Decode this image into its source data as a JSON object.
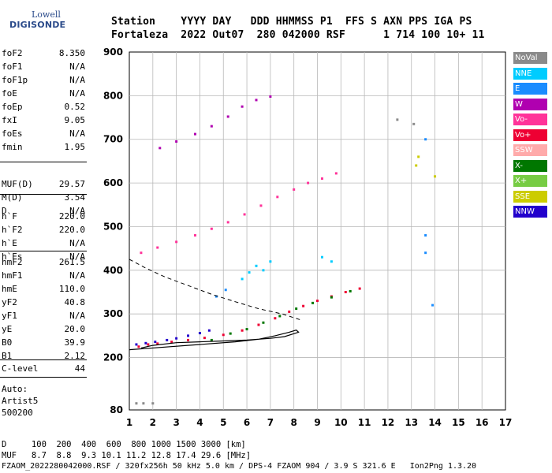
{
  "logo": {
    "top": "Lowell",
    "main": "DIGISONDE"
  },
  "header": {
    "line1": "Station    YYYY DAY   DDD HHMMSS P1  FFS S AXN PPS IGA PS",
    "line2": "Fortaleza  2022 Out07  280 042000 RSF      1 714 100 10+ 11"
  },
  "params": {
    "group1": [
      {
        "k": "foF2",
        "v": "8.350"
      },
      {
        "k": "foF1",
        "v": "N/A"
      },
      {
        "k": "foF1p",
        "v": "N/A"
      },
      {
        "k": "foE",
        "v": "N/A"
      },
      {
        "k": "foEp",
        "v": "0.52"
      },
      {
        "k": "fxI",
        "v": "9.05"
      },
      {
        "k": "foEs",
        "v": "N/A"
      },
      {
        "k": "fmin",
        "v": "1.95"
      }
    ],
    "group2": [
      {
        "k": "MUF(D)",
        "v": "29.57"
      },
      {
        "k": "M(D)",
        "v": "3.54"
      },
      {
        "k": "D",
        "v": "N/A"
      }
    ],
    "group3": [
      {
        "k": "h`F",
        "v": "220.0"
      },
      {
        "k": "h`F2",
        "v": "220.0"
      },
      {
        "k": "h`E",
        "v": "N/A"
      },
      {
        "k": "h`Es",
        "v": "N/A"
      }
    ],
    "group4": [
      {
        "k": "hmF2",
        "v": "261.5"
      },
      {
        "k": "hmF1",
        "v": "N/A"
      },
      {
        "k": "hmE",
        "v": "110.0"
      },
      {
        "k": "yF2",
        "v": "40.8"
      },
      {
        "k": "yF1",
        "v": "N/A"
      },
      {
        "k": "yE",
        "v": "20.0"
      },
      {
        "k": "B0",
        "v": "39.9"
      },
      {
        "k": "B1",
        "v": "2.12"
      }
    ],
    "clevel": {
      "k": "C-level",
      "v": "44"
    },
    "auto": [
      "Auto:",
      "Artist5",
      "500200"
    ]
  },
  "legend": [
    {
      "label": "NoVal",
      "color": "#8a8a8a"
    },
    {
      "label": "NNE",
      "color": "#00ccff"
    },
    {
      "label": "E",
      "color": "#1a8cff"
    },
    {
      "label": "W",
      "color": "#b000b0"
    },
    {
      "label": "Vo-",
      "color": "#ff3399"
    },
    {
      "label": "Vo+",
      "color": "#ee0033"
    },
    {
      "label": "SSW",
      "color": "#ffaaaa"
    },
    {
      "label": "X-",
      "color": "#007700"
    },
    {
      "label": "X+",
      "color": "#77cc44"
    },
    {
      "label": "SSE",
      "color": "#cccc00"
    },
    {
      "label": "NNW",
      "color": "#2200cc"
    }
  ],
  "footer": {
    "line1": "D     100  200  400  600  800 1000 1500 3000 [km]",
    "line2": "MUF   8.7  8.8  9.3 10.1 11.2 12.8 17.4 29.6 [MHz]",
    "line3": "FZAOM_2022280042000.RSF / 320fx256h 50 kHz 5.0 km / DPS-4 FZAOM 904 / 3.9 S 321.6 E   Ion2Png 1.3.20"
  },
  "chart_data": {
    "type": "scatter",
    "title": "",
    "xlabel": "",
    "ylabel": "",
    "xlim": [
      1,
      17
    ],
    "ylim": [
      80,
      900
    ],
    "x_ticks": [
      1,
      2,
      3,
      4,
      5,
      6,
      7,
      8,
      9,
      10,
      11,
      12,
      13,
      14,
      15,
      16,
      17
    ],
    "y_ticks": [
      80,
      200,
      300,
      400,
      500,
      600,
      700,
      800,
      900
    ],
    "grid": true,
    "series": [
      {
        "color": "#ee0033",
        "points": [
          [
            1.4,
            225
          ],
          [
            1.8,
            230
          ],
          [
            2.2,
            232
          ],
          [
            2.8,
            236
          ],
          [
            3.5,
            240
          ],
          [
            4.2,
            245
          ],
          [
            5.0,
            252
          ],
          [
            5.8,
            262
          ],
          [
            6.5,
            275
          ],
          [
            7.2,
            290
          ],
          [
            7.8,
            305
          ],
          [
            8.4,
            318
          ],
          [
            9.0,
            330
          ],
          [
            9.6,
            340
          ],
          [
            10.2,
            350
          ],
          [
            10.8,
            358
          ]
        ]
      },
      {
        "color": "#2200cc",
        "points": [
          [
            1.3,
            230
          ],
          [
            1.7,
            233
          ],
          [
            2.1,
            236
          ],
          [
            2.6,
            240
          ],
          [
            3.0,
            244
          ],
          [
            3.5,
            250
          ],
          [
            4.0,
            256
          ],
          [
            4.4,
            262
          ]
        ]
      },
      {
        "color": "#007700",
        "points": [
          [
            4.5,
            240
          ],
          [
            5.3,
            255
          ],
          [
            6.0,
            265
          ],
          [
            6.7,
            280
          ],
          [
            7.4,
            295
          ],
          [
            8.1,
            312
          ],
          [
            8.8,
            325
          ],
          [
            9.6,
            338
          ],
          [
            10.4,
            352
          ]
        ]
      },
      {
        "color": "#ff3399",
        "points": [
          [
            1.5,
            440
          ],
          [
            2.2,
            452
          ],
          [
            3.0,
            465
          ],
          [
            3.8,
            480
          ],
          [
            4.5,
            495
          ],
          [
            5.2,
            510
          ],
          [
            5.9,
            528
          ],
          [
            6.6,
            548
          ],
          [
            7.3,
            568
          ],
          [
            8.0,
            585
          ],
          [
            8.6,
            600
          ],
          [
            9.2,
            610
          ],
          [
            9.8,
            622
          ]
        ]
      },
      {
        "color": "#b000b0",
        "points": [
          [
            2.3,
            680
          ],
          [
            3.0,
            695
          ],
          [
            3.8,
            712
          ],
          [
            4.5,
            730
          ],
          [
            5.2,
            752
          ],
          [
            5.8,
            775
          ],
          [
            6.4,
            790
          ],
          [
            7.0,
            798
          ]
        ]
      },
      {
        "color": "#00ccff",
        "points": [
          [
            5.8,
            380
          ],
          [
            6.1,
            395
          ],
          [
            6.4,
            410
          ],
          [
            6.7,
            400
          ],
          [
            7.0,
            420
          ],
          [
            9.2,
            430
          ],
          [
            9.6,
            420
          ]
        ]
      },
      {
        "color": "#1a8cff",
        "points": [
          [
            4.7,
            340
          ],
          [
            5.1,
            355
          ],
          [
            13.6,
            700
          ],
          [
            13.6,
            440
          ],
          [
            13.6,
            480
          ],
          [
            13.9,
            320
          ]
        ]
      },
      {
        "color": "#cccc00",
        "points": [
          [
            13.2,
            640
          ],
          [
            13.3,
            660
          ],
          [
            14.0,
            615
          ]
        ]
      },
      {
        "color": "#8a8a8a",
        "points": [
          [
            1.3,
            95
          ],
          [
            1.6,
            95
          ],
          [
            2.0,
            95
          ],
          [
            12.4,
            745
          ],
          [
            13.1,
            735
          ]
        ]
      }
    ],
    "profile": [
      [
        1,
        218
      ],
      [
        2.5,
        224
      ],
      [
        4,
        230
      ],
      [
        5.5,
        236
      ],
      [
        6.5,
        242
      ],
      [
        7.2,
        250
      ],
      [
        7.8,
        258
      ],
      [
        8.1,
        263
      ],
      [
        8.2,
        258
      ],
      [
        7.6,
        248
      ],
      [
        7,
        244
      ],
      [
        6,
        240
      ],
      [
        5,
        238
      ],
      [
        4,
        236
      ],
      [
        3,
        234
      ],
      [
        2,
        228
      ],
      [
        1.5,
        222
      ]
    ],
    "dashed": [
      [
        1,
        425
      ],
      [
        1.7,
        405
      ],
      [
        2.5,
        385
      ],
      [
        3.5,
        365
      ],
      [
        4.5,
        345
      ],
      [
        5.5,
        328
      ],
      [
        6.5,
        312
      ],
      [
        7.5,
        300
      ],
      [
        8.3,
        286
      ]
    ]
  }
}
